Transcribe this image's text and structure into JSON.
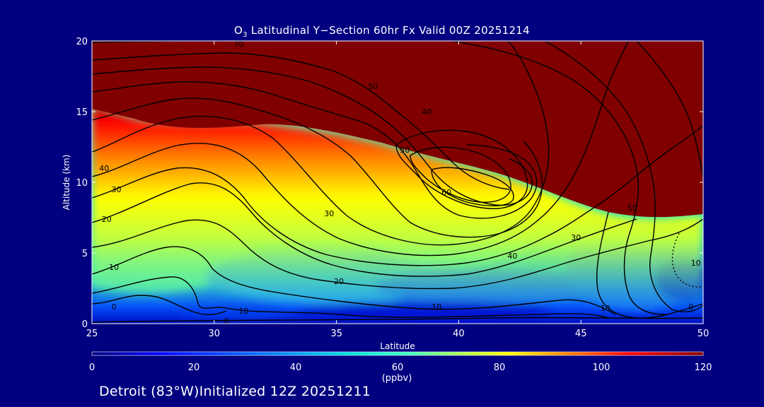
{
  "title": {
    "species_main": "O",
    "species_sub": "3",
    "rest": " Latitudinal Y−Section 60hr  Fx Valid 00Z 20251214"
  },
  "footer_text": "Detroit (83°W)Initialized 12Z 20251211",
  "colors": {
    "background": "#000080",
    "text": "#ffffff",
    "contour": "#000000"
  },
  "chart_data": {
    "type": "heatmap",
    "xlabel": "Latitude",
    "ylabel": "Altitude (km)",
    "xlim": [
      25,
      50
    ],
    "ylim": [
      0,
      20
    ],
    "xticks": [
      25,
      30,
      35,
      40,
      45,
      50
    ],
    "yticks": [
      0,
      5,
      10,
      15,
      20
    ],
    "colorbar": {
      "min": 0,
      "max": 120,
      "ticks": [
        0,
        20,
        40,
        60,
        80,
        100,
        120
      ],
      "unit": "(ppbv)",
      "palette": [
        "#00007f",
        "#0000ff",
        "#0080ff",
        "#00e0e0",
        "#40ffc0",
        "#c0ff40",
        "#ffff00",
        "#ff8000",
        "#ff0000",
        "#800000"
      ]
    },
    "contour_labels": [
      {
        "text": "0",
        "lat": 25.9,
        "alt": 1.2
      },
      {
        "text": "0",
        "lat": 30.5,
        "alt": 0.2
      },
      {
        "text": "10",
        "lat": 25.9,
        "alt": 4.0
      },
      {
        "text": "10",
        "lat": 31.2,
        "alt": 0.9
      },
      {
        "text": "10",
        "lat": 39.1,
        "alt": 1.2
      },
      {
        "text": "10",
        "lat": 46.0,
        "alt": 1.1
      },
      {
        "text": "10",
        "lat": 49.7,
        "alt": 4.3
      },
      {
        "text": "0",
        "lat": 49.5,
        "alt": 1.2
      },
      {
        "text": "20",
        "lat": 25.6,
        "alt": 7.4
      },
      {
        "text": "20",
        "lat": 35.1,
        "alt": 3.0
      },
      {
        "text": "30",
        "lat": 26.0,
        "alt": 9.5
      },
      {
        "text": "30",
        "lat": 34.7,
        "alt": 7.8
      },
      {
        "text": "30",
        "lat": 44.8,
        "alt": 6.1
      },
      {
        "text": "40",
        "lat": 25.5,
        "alt": 11.0
      },
      {
        "text": "40",
        "lat": 42.2,
        "alt": 4.8
      },
      {
        "text": "40",
        "lat": 38.7,
        "alt": 15.0
      },
      {
        "text": "50",
        "lat": 37.8,
        "alt": 12.3
      },
      {
        "text": "50",
        "lat": 47.1,
        "alt": 8.2
      },
      {
        "text": "50",
        "lat": 36.5,
        "alt": 16.8
      },
      {
        "text": "60",
        "lat": 39.5,
        "alt": 9.3
      },
      {
        "text": "70",
        "lat": 31.0,
        "alt": 19.8
      }
    ]
  }
}
